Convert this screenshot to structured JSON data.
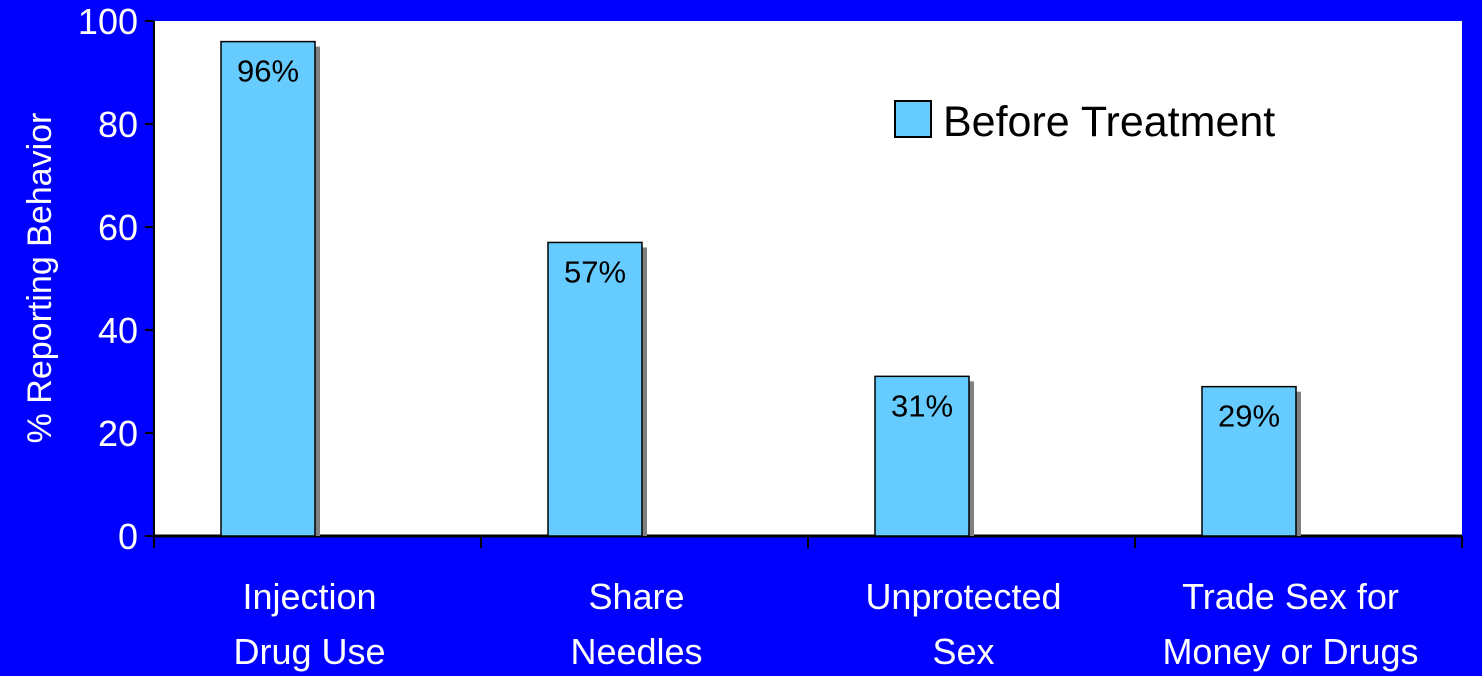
{
  "chart_data": {
    "type": "bar",
    "categories": [
      [
        "Injection",
        "Drug Use"
      ],
      [
        "Share",
        "Needles"
      ],
      [
        "Unprotected",
        "Sex"
      ],
      [
        "Trade Sex for",
        "Money or Drugs"
      ]
    ],
    "series": [
      {
        "name": "Before Treatment",
        "values": [
          96,
          57,
          31,
          29
        ],
        "labels": [
          "96%",
          "57%",
          "31%",
          "29%"
        ]
      }
    ],
    "ylabel": "% Reporting Behavior",
    "xlabel": "",
    "ylim": [
      0,
      100
    ],
    "yticks": [
      0,
      20,
      40,
      60,
      80,
      100
    ],
    "legend_position": "top-right",
    "grid": false
  },
  "colors": {
    "page_background": "#0000FF",
    "plot_background": "#FFFFFF",
    "bar_fill": "#66CCFF",
    "bar_shadow": "#808080",
    "axis_text": "#FFFFFF",
    "axis_line": "#000000"
  }
}
